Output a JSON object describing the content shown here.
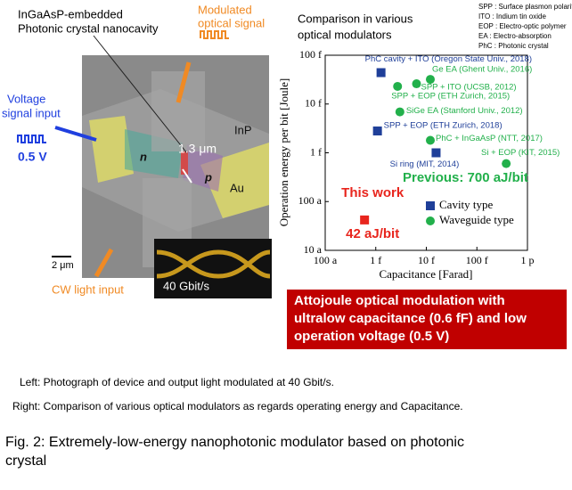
{
  "figure": {
    "left": {
      "cavity_label": [
        "InGaAsP-embedded",
        "Photonic crystal nanocavity"
      ],
      "output_label": [
        "Modulated",
        "optical signal"
      ],
      "voltage_label": [
        "Voltage",
        "signal input"
      ],
      "voltage": "0.5 V",
      "n": "n",
      "p": "p",
      "inp": "InP",
      "au": "Au",
      "gap": "1.3 μm",
      "scale": "2 μm",
      "input_label": "CW light input",
      "bitrate": "40 Gbit/s"
    },
    "abbreviations": [
      "SPP : Surface plasmon polariton",
      "ITO : Indium tin oxide",
      "EOP : Electro-optic polymer",
      "EA : Electro-absorption",
      "PhC : Photonic crystal"
    ],
    "highlight": [
      "Attojoule optical modulation with",
      "ultralow capacitance (0.6 fF) and low",
      "operation voltage (0.5 V)"
    ],
    "captions": [
      "Left: Photograph of device and output light modulated at 40 Gbit/s.",
      "Right: Comparison of various optical modulators as regards operating energy and  Capacitance."
    ],
    "fig_caption": [
      "Fig. 2: Extremely-low-energy nanophotonic modulator based on photonic",
      "crystal"
    ]
  },
  "chart_data": {
    "type": "scatter",
    "title": [
      "Comparison in various",
      "optical modulators"
    ],
    "x_label": "Capacitance [Farad]",
    "y_label": "Operation energy per bit [Joule]",
    "xscale": "log",
    "yscale": "log",
    "xlim": [
      1e-16,
      1e-12
    ],
    "ylim": [
      1e-17,
      1e-13
    ],
    "xticks": [
      {
        "value": 1e-16,
        "label": "100 a"
      },
      {
        "value": 1e-15,
        "label": "1 f"
      },
      {
        "value": 1e-14,
        "label": "10 f"
      },
      {
        "value": 1e-13,
        "label": "100 f"
      },
      {
        "value": 1e-12,
        "label": "1 p"
      }
    ],
    "yticks": [
      {
        "value": 1e-17,
        "label": "10 a"
      },
      {
        "value": 1e-16,
        "label": "100 a"
      },
      {
        "value": 1e-15,
        "label": "1 f"
      },
      {
        "value": 1e-14,
        "label": "10 f"
      },
      {
        "value": 1e-13,
        "label": "100 f"
      }
    ],
    "legend": "lower right",
    "series": [
      {
        "name": "Cavity type",
        "color": "#1f3f99",
        "marker": "square",
        "x": [
          1.27e-15,
          1.08e-15,
          1.56e-14
        ],
        "values": [
          4.4e-14,
          2.8e-15,
          1e-15
        ],
        "labels": [
          "PhC cavity + ITO (Oregon State Univ., 2018)",
          "SPP + EOP (ETH Zurich, 2018)",
          "Si ring (MIT, 2014)"
        ]
      },
      {
        "name": "Waveguide type",
        "color": "#22b04b",
        "marker": "circle",
        "x": [
          2.7e-15,
          6.4e-15,
          1.2e-14,
          3e-15,
          1.2e-14,
          3.8e-13
        ],
        "values": [
          2.3e-14,
          2.6e-14,
          3.2e-14,
          6.9e-15,
          1.8e-15,
          6e-16
        ],
        "labels": [
          "SPP + EOP (ETH Zurich, 2015)",
          "SPP + ITO (UCSB, 2012)",
          "Ge EA (Ghent Univ., 2016)",
          "SiGe EA (Stanford Univ., 2012)",
          "PhC + InGaAsP (NTT, 2017)",
          "Si + EOP (KIT, 2015)"
        ]
      },
      {
        "name": "This work",
        "color": "#e8251d",
        "marker": "square",
        "x": [
          6e-16
        ],
        "values": [
          4.2e-17
        ],
        "value_labels": [
          "42 aJ/bit"
        ]
      }
    ],
    "annotation": "Previous: 700 aJ/bit"
  }
}
